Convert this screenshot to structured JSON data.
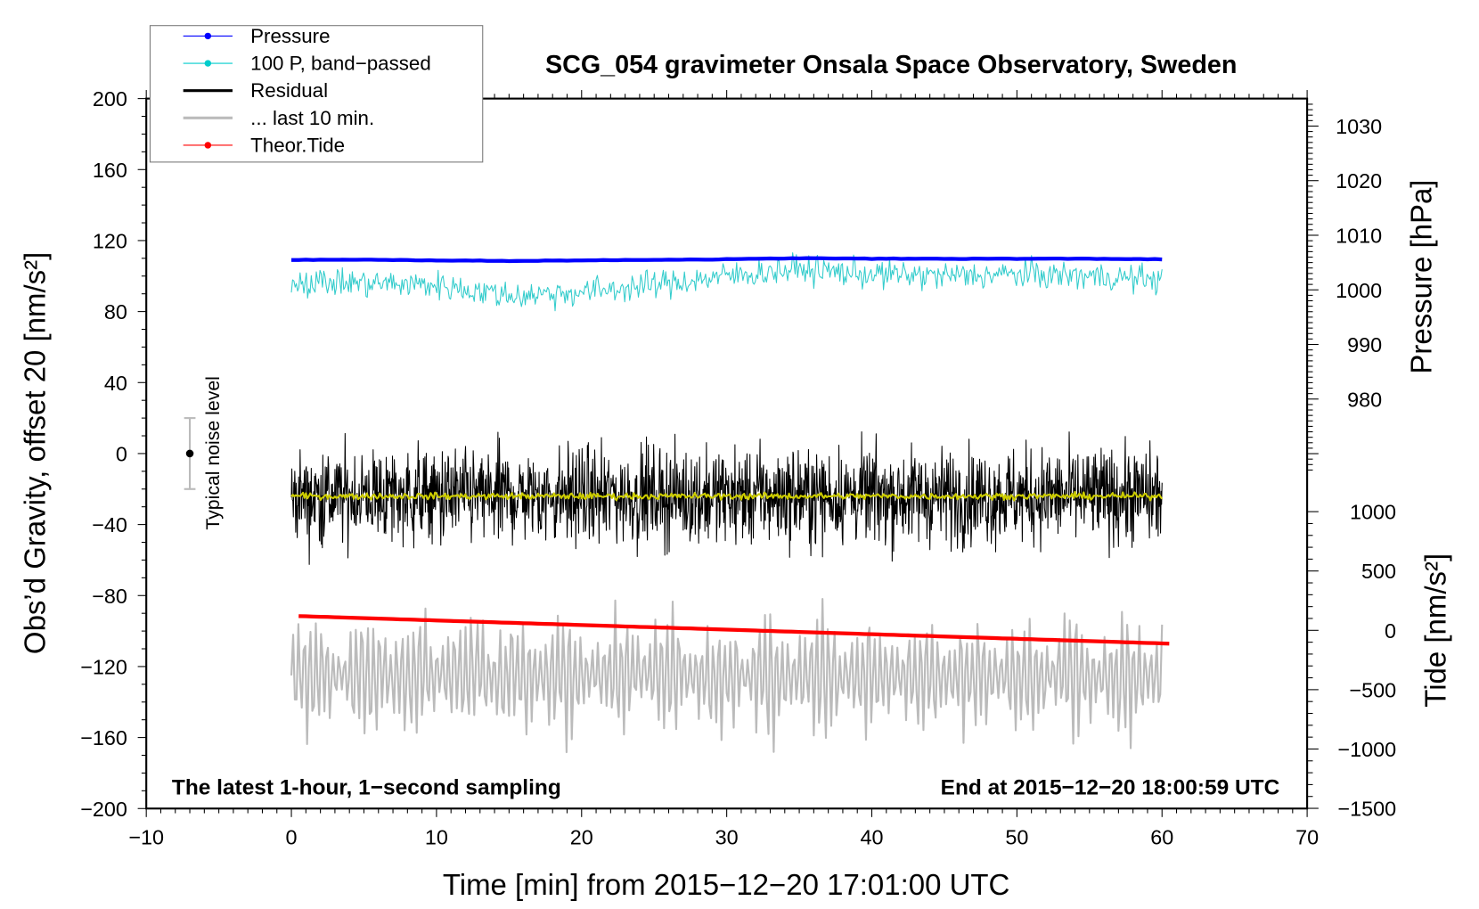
{
  "chart_data": {
    "type": "line",
    "title": "SCG_054 gravimeter Onsala Space Observatory, Sweden",
    "xlabel": "Time [min] from 2015−12−20 17:01:00 UTC",
    "ylabel": "Obs’d Gravity, offset 20 [nm/s²]",
    "ylabel_right_top": "Pressure [hPa]",
    "ylabel_right_bottom": "Tide [nm/s²]",
    "xlim": [
      -10,
      70
    ],
    "ylim": [
      -200,
      200
    ],
    "pressure_lim_ticks": [
      1030,
      980
    ],
    "tide_lim": [
      -1500,
      1000
    ],
    "x_ticks": [
      "−10",
      "0",
      "10",
      "20",
      "30",
      "40",
      "50",
      "60",
      "70"
    ],
    "x_tick_values": [
      -10,
      0,
      10,
      20,
      30,
      40,
      50,
      60,
      70
    ],
    "y_ticks": [
      "200",
      "160",
      "120",
      "80",
      "40",
      "0",
      "−40",
      "−80",
      "−120",
      "−160",
      "−200"
    ],
    "y_tick_values": [
      200,
      160,
      120,
      80,
      40,
      0,
      -40,
      -80,
      -120,
      -160,
      -200
    ],
    "pressure_ticks": [
      "1030",
      "1020",
      "1010",
      "1000",
      "990",
      "980"
    ],
    "pressure_tick_values": [
      1030,
      1020,
      1010,
      1000,
      990,
      980
    ],
    "tide_ticks": [
      "1000",
      "500",
      "0",
      "−500",
      "−1000",
      "−1500"
    ],
    "tide_tick_values": [
      1000,
      500,
      0,
      -500,
      -1000,
      -1500
    ],
    "annotations": {
      "bottom_left": "The latest 1-hour, 1−second sampling",
      "bottom_right": "End at 2015−12−20 18:00:59 UTC",
      "noise_label": "Typical noise level"
    },
    "noise_bar": {
      "x": -7,
      "center": 0,
      "halfwidth": 20
    },
    "legend": {
      "placement": "top-left",
      "entries": [
        {
          "label": "Pressure",
          "color": "#0000ff",
          "marker": true
        },
        {
          "label": "100 P, band−passed",
          "color": "#00cccc",
          "marker": true
        },
        {
          "label": "Residual",
          "color": "#000000",
          "marker": false
        },
        {
          "label": "... last 10 min.",
          "color": "#bbbbbb",
          "marker": false
        },
        {
          "label": "Theor.Tide",
          "color": "#ff0000",
          "marker": true
        }
      ]
    },
    "series": [
      {
        "name": "Pressure",
        "axis": "pressure_hPa",
        "color": "#0000ff",
        "x": [
          0,
          5,
          10,
          15,
          20,
          25,
          30,
          35,
          40,
          45,
          50,
          55,
          60
        ],
        "values": [
          1005.5,
          1005.5,
          1005.4,
          1005.3,
          1005.4,
          1005.5,
          1005.6,
          1005.8,
          1005.7,
          1005.7,
          1005.7,
          1005.7,
          1005.6
        ]
      },
      {
        "name": "100 P, band-passed",
        "axis": "gravity",
        "color": "#33cccc",
        "x": [
          0,
          5,
          10,
          15,
          20,
          25,
          30,
          35,
          40,
          45,
          50,
          55,
          60
        ],
        "values": [
          97,
          96,
          95,
          89,
          91,
          95,
          100,
          104,
          101,
          100,
          101,
          100,
          98
        ],
        "noise_amplitude": 9
      },
      {
        "name": "Residual",
        "axis": "gravity",
        "color": "#000000",
        "x": [
          0,
          60
        ],
        "values": [
          -24,
          -24
        ],
        "noise_amplitude": 30
      },
      {
        "name": "Residual smoothed",
        "axis": "gravity",
        "color": "#cccc00",
        "x": [
          0,
          60
        ],
        "values": [
          -24,
          -24
        ],
        "noise_amplitude": 2
      },
      {
        "name": "... last 10 min.",
        "axis": "gravity",
        "color": "#bbbbbb",
        "x": [
          0,
          60
        ],
        "values": [
          -125,
          -125
        ],
        "noise_amplitude": 45
      },
      {
        "name": "Theor.Tide",
        "axis": "tide",
        "color": "#ff0000",
        "x": [
          0.5,
          60.5
        ],
        "values": [
          120,
          -112
        ]
      }
    ]
  }
}
